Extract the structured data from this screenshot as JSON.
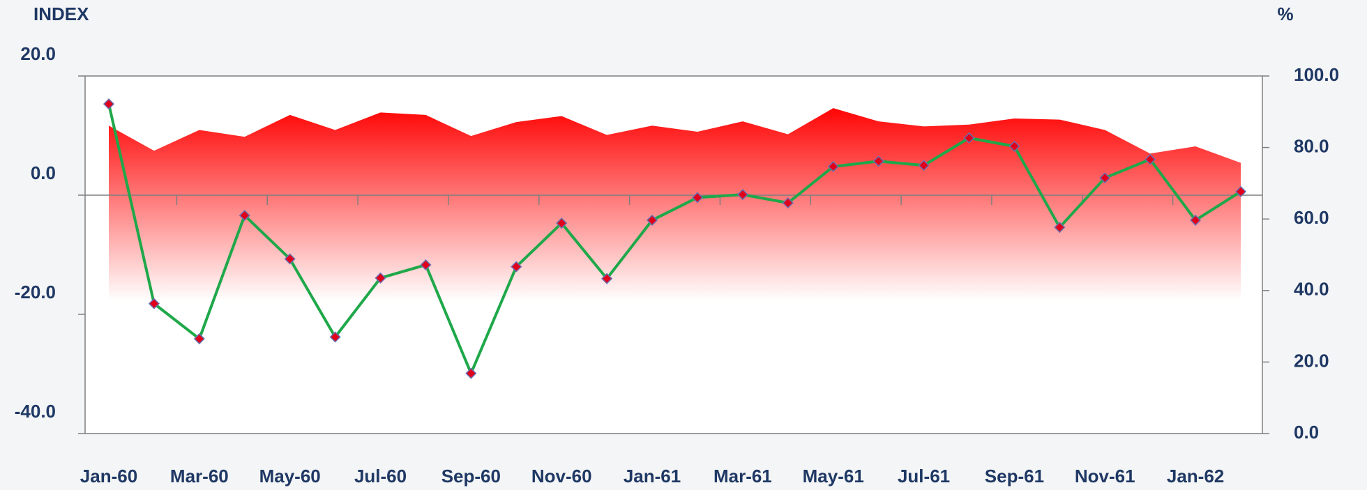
{
  "chart_data": {
    "type": "line",
    "y_label": "INDEX",
    "y2_label": "%",
    "categories": [
      "Jan-60",
      null,
      "Mar-60",
      null,
      "May-60",
      null,
      "Jul-60",
      null,
      "Sep-60",
      null,
      "Nov-60",
      null,
      "Jan-61",
      null,
      "Mar-61",
      null,
      "May-61",
      null,
      "Jul-61",
      null,
      "Sep-61",
      null,
      "Nov-61",
      null,
      "Jan-62",
      null
    ],
    "series": [
      {
        "type": "area",
        "axis": "y2",
        "color": "#ff0000",
        "values": [
          86.1,
          79.1,
          84.9,
          83.0,
          89.1,
          84.9,
          89.8,
          89.1,
          83.2,
          87.1,
          88.8,
          83.5,
          86.1,
          84.4,
          87.3,
          83.7,
          91.0,
          87.3,
          85.9,
          86.4,
          88.1,
          87.8,
          84.9,
          78.3,
          80.3,
          75.7
        ]
      },
      {
        "type": "line",
        "axis": "y",
        "color": "#1fa84a",
        "marker_color": "#e0001b",
        "values": [
          15.3,
          -18.2,
          -24.1,
          -3.4,
          -10.7,
          -23.8,
          -13.9,
          -11.7,
          -29.9,
          -12.0,
          -4.7,
          -14.0,
          -4.2,
          -0.4,
          0.1,
          -1.3,
          4.8,
          5.7,
          5.0,
          9.6,
          8.2,
          -5.4,
          2.9,
          6.0,
          -4.2,
          0.6
        ]
      }
    ],
    "ylim": [
      -40,
      20
    ],
    "yticks": [
      {
        "value": -40,
        "label": "-40.0"
      },
      {
        "value": -20,
        "label": "-20.0"
      },
      {
        "value": 0,
        "label": "0.0"
      },
      {
        "value": 20,
        "label": "20.0"
      }
    ],
    "y2lim": [
      0,
      100
    ],
    "y2ticks": [
      {
        "value": 0,
        "label": "0.0"
      },
      {
        "value": 20,
        "label": "20.0"
      },
      {
        "value": 40,
        "label": "40.0"
      },
      {
        "value": 60,
        "label": "60.0"
      },
      {
        "value": 80,
        "label": "80.0"
      },
      {
        "value": 100,
        "label": "100.0"
      }
    ]
  }
}
